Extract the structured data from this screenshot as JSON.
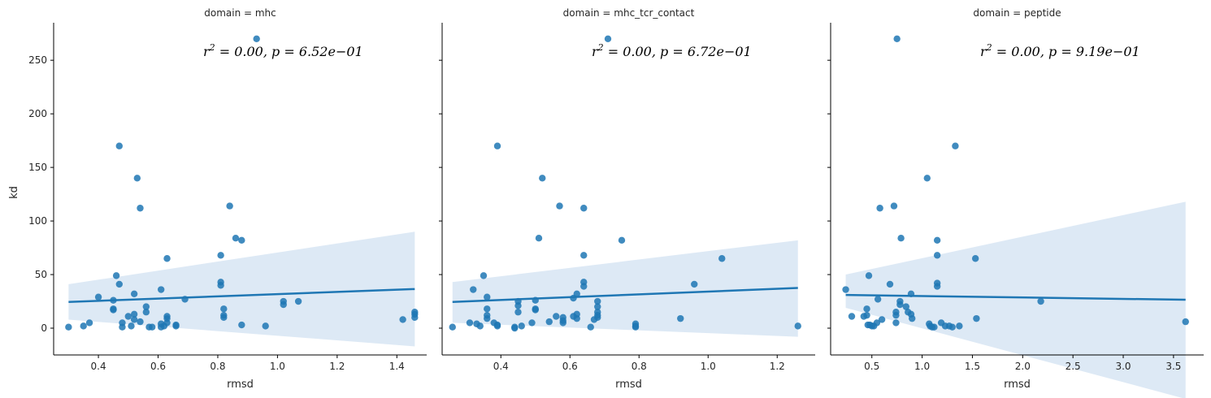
{
  "figure": {
    "ylabel": "kd",
    "xlabel": "rmsd",
    "colors": {
      "points": "#1f77b4",
      "line": "#1f77b4",
      "band": "#c6dbef"
    }
  },
  "chart_data": [
    {
      "type": "scatter",
      "title": "domain = mhc",
      "annotation": {
        "r2": "0.00",
        "p": "6.52e−01"
      },
      "xlabel": "rmsd",
      "ylabel": "kd",
      "xlim": [
        0.25,
        1.5
      ],
      "ylim": [
        -25,
        285
      ],
      "xticks": [
        0.4,
        0.6,
        0.8,
        1.0,
        1.2,
        1.4
      ],
      "yticks": [
        0,
        50,
        100,
        150,
        200,
        250
      ],
      "regression": {
        "x": [
          0.3,
          1.46
        ],
        "y": [
          24.5,
          36.5
        ],
        "ci_lower": [
          8,
          -17
        ],
        "ci_upper": [
          41,
          90
        ]
      },
      "points": [
        [
          0.3,
          1
        ],
        [
          0.35,
          2
        ],
        [
          0.37,
          5
        ],
        [
          0.4,
          29
        ],
        [
          0.45,
          18
        ],
        [
          0.45,
          17
        ],
        [
          0.45,
          26
        ],
        [
          0.46,
          49
        ],
        [
          0.47,
          170
        ],
        [
          0.47,
          41
        ],
        [
          0.48,
          1
        ],
        [
          0.48,
          5
        ],
        [
          0.5,
          11
        ],
        [
          0.51,
          2
        ],
        [
          0.52,
          32
        ],
        [
          0.52,
          13
        ],
        [
          0.52,
          8
        ],
        [
          0.53,
          140
        ],
        [
          0.54,
          6
        ],
        [
          0.54,
          112
        ],
        [
          0.56,
          20
        ],
        [
          0.56,
          15
        ],
        [
          0.57,
          1
        ],
        [
          0.58,
          1
        ],
        [
          0.61,
          36
        ],
        [
          0.61,
          4
        ],
        [
          0.61,
          1
        ],
        [
          0.62,
          2
        ],
        [
          0.63,
          65
        ],
        [
          0.63,
          11
        ],
        [
          0.63,
          9
        ],
        [
          0.63,
          5
        ],
        [
          0.66,
          2
        ],
        [
          0.66,
          3
        ],
        [
          0.69,
          27
        ],
        [
          0.81,
          68
        ],
        [
          0.81,
          43
        ],
        [
          0.81,
          40
        ],
        [
          0.82,
          18
        ],
        [
          0.82,
          12
        ],
        [
          0.82,
          10
        ],
        [
          0.84,
          114
        ],
        [
          0.86,
          84
        ],
        [
          0.88,
          82
        ],
        [
          0.88,
          3
        ],
        [
          0.93,
          270
        ],
        [
          0.96,
          2
        ],
        [
          1.02,
          25
        ],
        [
          1.02,
          22
        ],
        [
          1.07,
          25
        ],
        [
          1.42,
          8
        ],
        [
          1.46,
          15
        ],
        [
          1.46,
          13
        ],
        [
          1.46,
          10
        ]
      ]
    },
    {
      "type": "scatter",
      "title": "domain = mhc_tcr_contact",
      "annotation": {
        "r2": "0.00",
        "p": "6.72e−01"
      },
      "xlabel": "rmsd",
      "ylabel": "kd",
      "xlim": [
        0.23,
        1.31
      ],
      "ylim": [
        -25,
        285
      ],
      "xticks": [
        0.4,
        0.6,
        0.8,
        1.0,
        1.2
      ],
      "yticks": [
        0,
        50,
        100,
        150,
        200,
        250
      ],
      "regression": {
        "x": [
          0.26,
          1.26
        ],
        "y": [
          24.5,
          37.5
        ],
        "ci_lower": [
          5,
          -8
        ],
        "ci_upper": [
          43,
          82
        ]
      },
      "points": [
        [
          0.26,
          1
        ],
        [
          0.31,
          5
        ],
        [
          0.32,
          36
        ],
        [
          0.33,
          4
        ],
        [
          0.34,
          2
        ],
        [
          0.35,
          49
        ],
        [
          0.36,
          18
        ],
        [
          0.36,
          12
        ],
        [
          0.36,
          9
        ],
        [
          0.36,
          29
        ],
        [
          0.38,
          5
        ],
        [
          0.39,
          170
        ],
        [
          0.39,
          3
        ],
        [
          0.39,
          2
        ],
        [
          0.44,
          1
        ],
        [
          0.44,
          0
        ],
        [
          0.45,
          15
        ],
        [
          0.45,
          25
        ],
        [
          0.45,
          21
        ],
        [
          0.46,
          2
        ],
        [
          0.49,
          5
        ],
        [
          0.5,
          26
        ],
        [
          0.5,
          18
        ],
        [
          0.5,
          17
        ],
        [
          0.51,
          84
        ],
        [
          0.52,
          140
        ],
        [
          0.54,
          6
        ],
        [
          0.56,
          11
        ],
        [
          0.57,
          114
        ],
        [
          0.58,
          10
        ],
        [
          0.58,
          7
        ],
        [
          0.58,
          5
        ],
        [
          0.61,
          28
        ],
        [
          0.61,
          11
        ],
        [
          0.62,
          32
        ],
        [
          0.62,
          13
        ],
        [
          0.62,
          9
        ],
        [
          0.64,
          112
        ],
        [
          0.64,
          68
        ],
        [
          0.64,
          43
        ],
        [
          0.64,
          39
        ],
        [
          0.66,
          1
        ],
        [
          0.67,
          8
        ],
        [
          0.68,
          25
        ],
        [
          0.68,
          20
        ],
        [
          0.68,
          15
        ],
        [
          0.68,
          12
        ],
        [
          0.68,
          10
        ],
        [
          0.71,
          270
        ],
        [
          0.75,
          82
        ],
        [
          0.79,
          4
        ],
        [
          0.79,
          2
        ],
        [
          0.79,
          1
        ],
        [
          0.92,
          9
        ],
        [
          0.96,
          41
        ],
        [
          1.04,
          65
        ],
        [
          1.26,
          2
        ]
      ]
    },
    {
      "type": "scatter",
      "title": "domain = peptide",
      "annotation": {
        "r2": "0.00",
        "p": "9.19e−01"
      },
      "xlabel": "rmsd",
      "ylabel": "kd",
      "xlim": [
        0.09,
        3.8
      ],
      "ylim": [
        -25,
        285
      ],
      "xticks": [
        0.5,
        1.0,
        1.5,
        2.0,
        2.5,
        3.0,
        3.5
      ],
      "yticks": [
        0,
        50,
        100,
        150,
        200,
        250
      ],
      "regression": {
        "x": [
          0.24,
          3.62
        ],
        "y": [
          31,
          26.5
        ],
        "ci_lower": [
          19,
          -66
        ],
        "ci_upper": [
          50,
          118
        ]
      },
      "points": [
        [
          0.24,
          36
        ],
        [
          0.3,
          11
        ],
        [
          0.42,
          11
        ],
        [
          0.45,
          18
        ],
        [
          0.45,
          12
        ],
        [
          0.46,
          3
        ],
        [
          0.47,
          49
        ],
        [
          0.48,
          3
        ],
        [
          0.5,
          2
        ],
        [
          0.52,
          2
        ],
        [
          0.55,
          5
        ],
        [
          0.56,
          27
        ],
        [
          0.58,
          112
        ],
        [
          0.6,
          8
        ],
        [
          0.68,
          41
        ],
        [
          0.72,
          114
        ],
        [
          0.74,
          15
        ],
        [
          0.74,
          12
        ],
        [
          0.74,
          5
        ],
        [
          0.75,
          270
        ],
        [
          0.78,
          25
        ],
        [
          0.78,
          22
        ],
        [
          0.79,
          84
        ],
        [
          0.84,
          20
        ],
        [
          0.86,
          15
        ],
        [
          0.89,
          32
        ],
        [
          0.89,
          13
        ],
        [
          0.9,
          9
        ],
        [
          1.05,
          140
        ],
        [
          1.07,
          4
        ],
        [
          1.08,
          2
        ],
        [
          1.1,
          1
        ],
        [
          1.12,
          1
        ],
        [
          1.15,
          82
        ],
        [
          1.15,
          68
        ],
        [
          1.15,
          42
        ],
        [
          1.15,
          39
        ],
        [
          1.19,
          5
        ],
        [
          1.23,
          2
        ],
        [
          1.27,
          2
        ],
        [
          1.3,
          1
        ],
        [
          1.33,
          170
        ],
        [
          1.37,
          2
        ],
        [
          1.53,
          65
        ],
        [
          1.54,
          9
        ],
        [
          2.18,
          25
        ],
        [
          3.62,
          6
        ]
      ]
    }
  ]
}
